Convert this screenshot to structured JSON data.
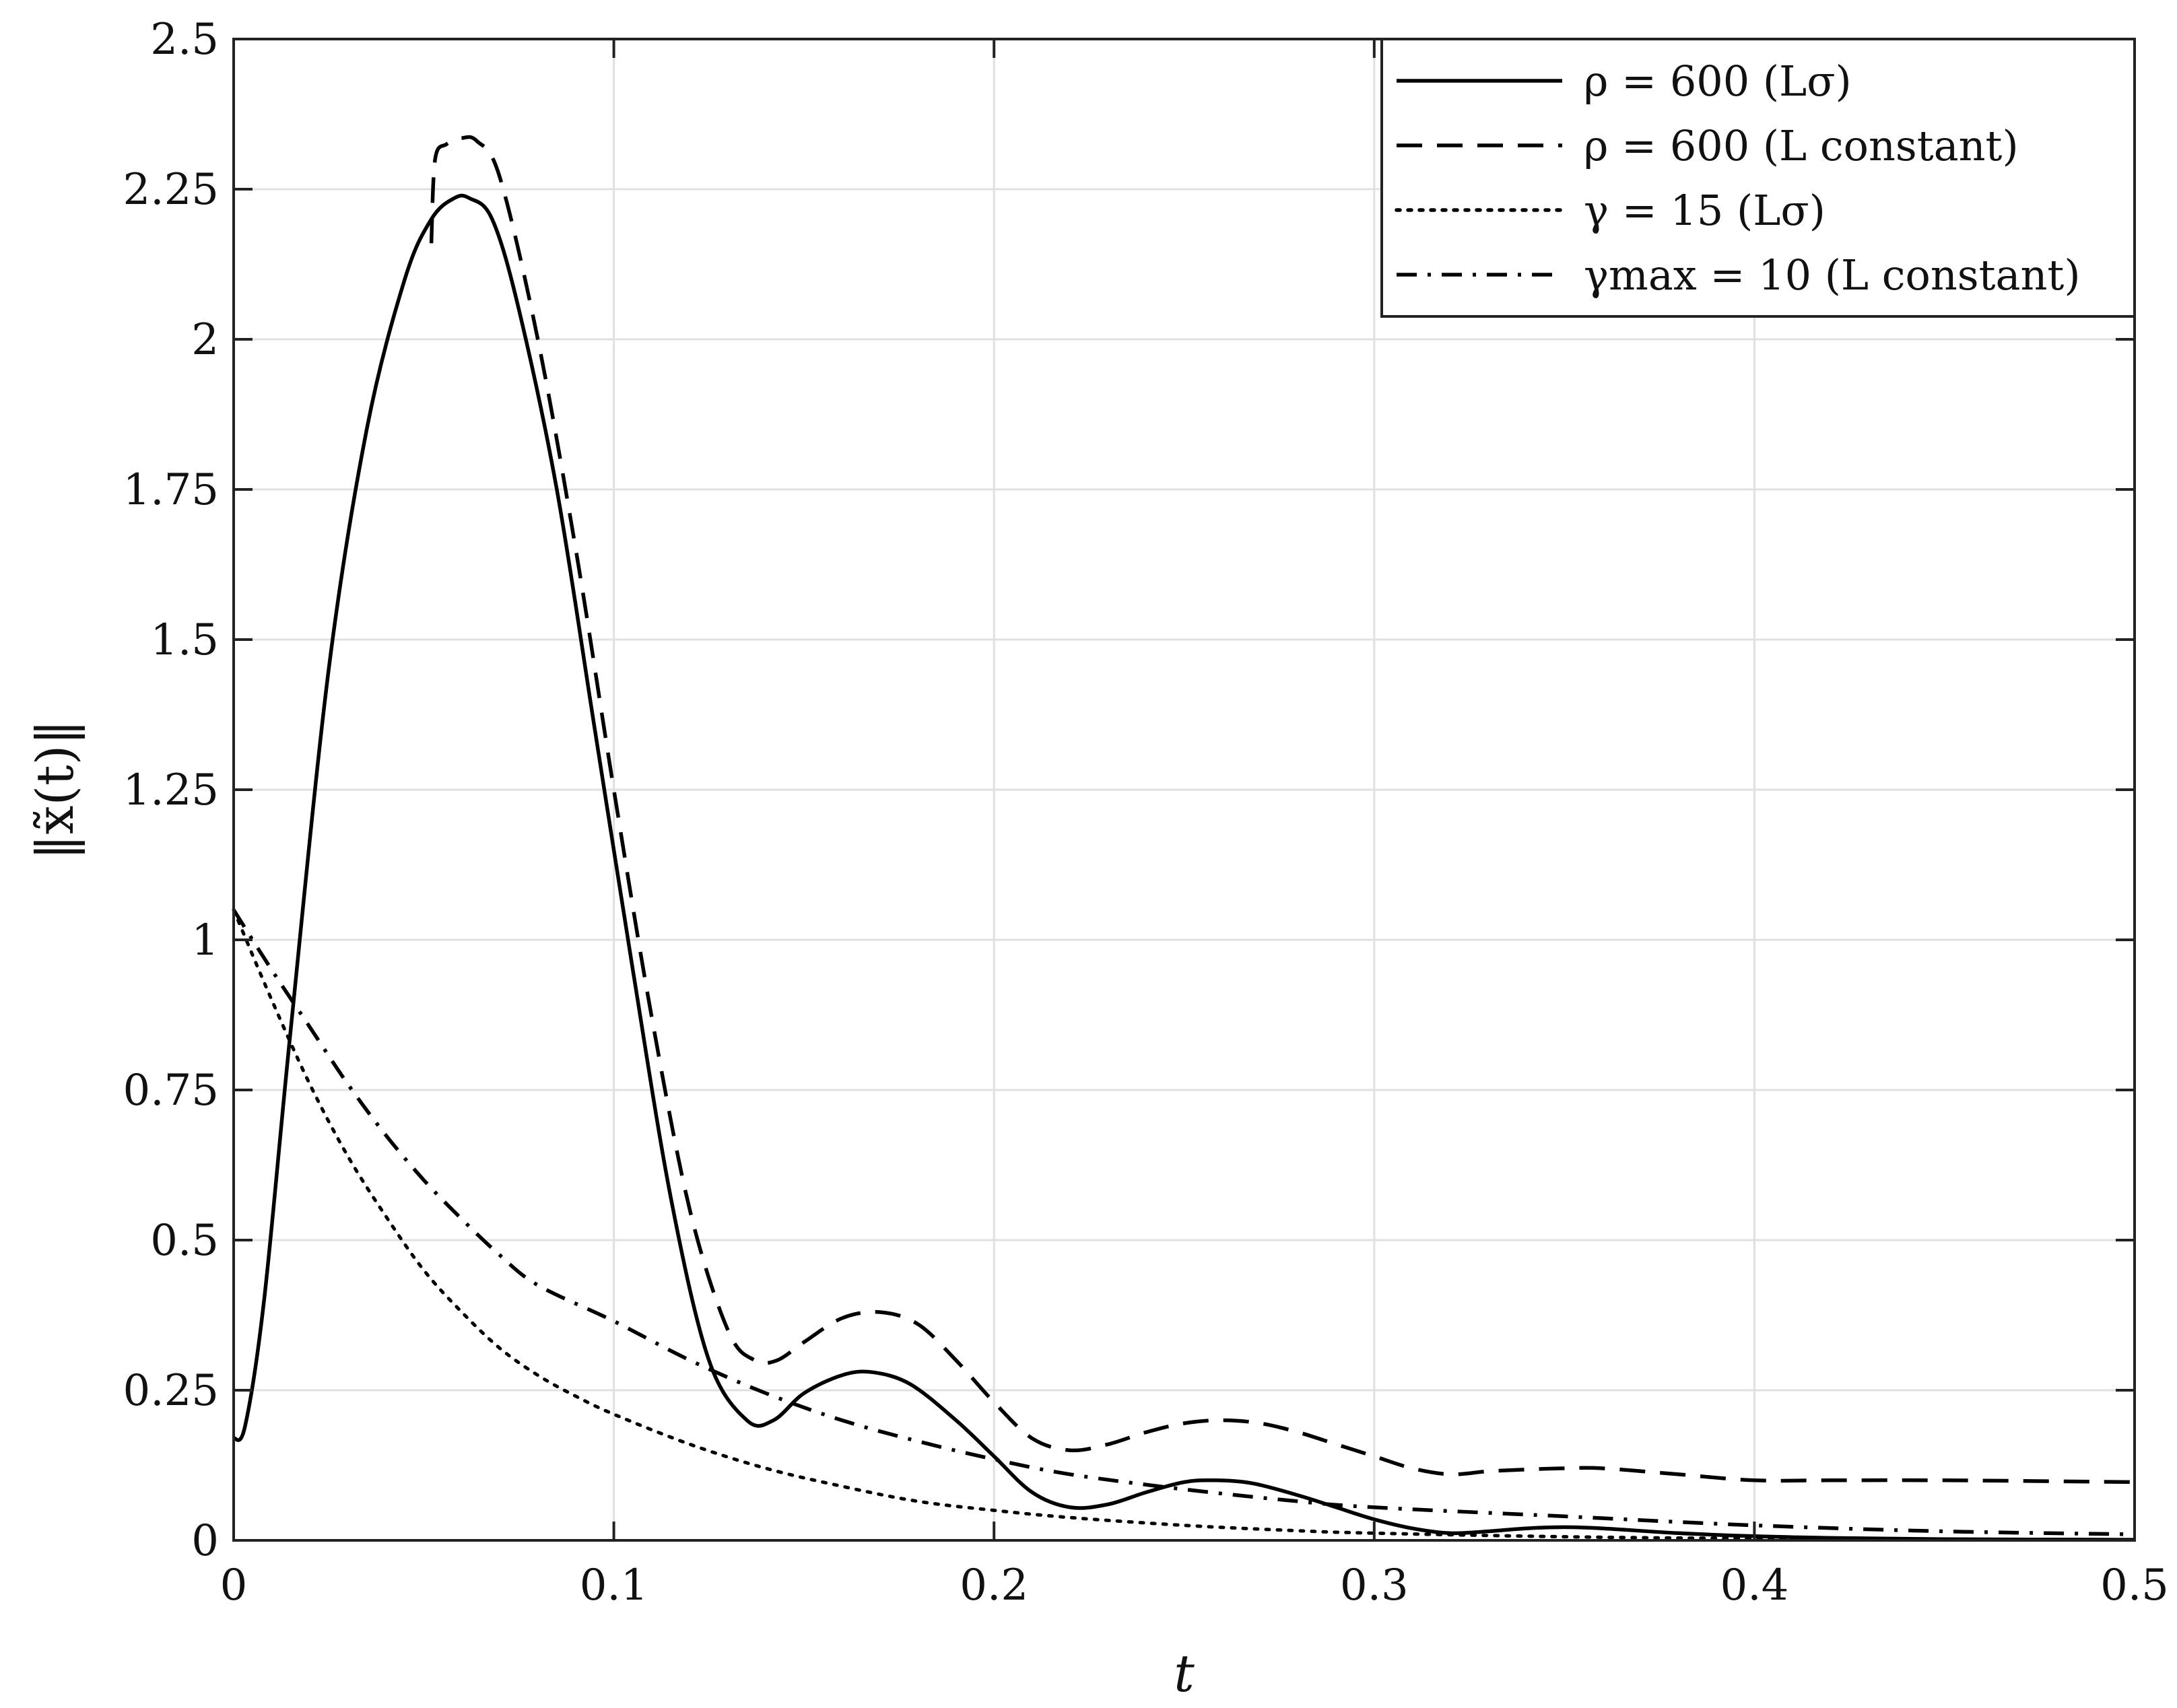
{
  "chart_data": {
    "type": "line",
    "title": "",
    "xlabel": "t",
    "ylabel": "‖x̃(t)‖",
    "xlim": [
      0,
      0.5
    ],
    "ylim": [
      0,
      2.5
    ],
    "xticks": [
      0,
      0.1,
      0.2,
      0.3,
      0.4,
      0.5
    ],
    "xtick_labels": [
      "0",
      "0.1",
      "0.2",
      "0.3",
      "0.4",
      "0.5"
    ],
    "yticks": [
      0,
      0.25,
      0.5,
      0.75,
      1,
      1.25,
      1.5,
      1.75,
      2,
      2.25,
      2.5
    ],
    "ytick_labels": [
      "0",
      "0.25",
      "0.5",
      "0.75",
      "1",
      "1.25",
      "1.5",
      "1.75",
      "2",
      "2.25",
      "2.5"
    ],
    "grid": true,
    "legend_position": "top-right",
    "series": [
      {
        "name": "ρ = 600 (Lσ)",
        "style": "solid",
        "color": "#000000",
        "x": [
          0,
          0.003,
          0.008,
          0.015,
          0.025,
          0.035,
          0.045,
          0.052,
          0.058,
          0.062,
          0.068,
          0.075,
          0.085,
          0.095,
          0.105,
          0.115,
          0.125,
          0.135,
          0.142,
          0.15,
          0.16,
          0.168,
          0.178,
          0.19,
          0.2,
          0.21,
          0.22,
          0.23,
          0.24,
          0.25,
          0.258,
          0.268,
          0.28,
          0.29,
          0.3,
          0.31,
          0.32,
          0.33,
          0.34,
          0.35,
          0.36,
          0.38,
          0.4,
          0.42,
          0.45,
          0.5
        ],
        "y": [
          0.17,
          0.19,
          0.4,
          0.85,
          1.45,
          1.85,
          2.1,
          2.2,
          2.235,
          2.235,
          2.2,
          2.05,
          1.75,
          1.35,
          0.95,
          0.57,
          0.3,
          0.2,
          0.2,
          0.245,
          0.275,
          0.28,
          0.26,
          0.2,
          0.14,
          0.08,
          0.055,
          0.06,
          0.08,
          0.097,
          0.1,
          0.095,
          0.075,
          0.055,
          0.035,
          0.02,
          0.012,
          0.015,
          0.02,
          0.022,
          0.02,
          0.012,
          0.007,
          0.004,
          0.002,
          0.001
        ]
      },
      {
        "name": "ρ = 600 (L constant)",
        "style": "dashed",
        "color": "#000000",
        "x": [
          0.052,
          0.053,
          0.056,
          0.06,
          0.064,
          0.07,
          0.08,
          0.09,
          0.1,
          0.11,
          0.12,
          0.13,
          0.137,
          0.143,
          0.15,
          0.16,
          0.17,
          0.18,
          0.19,
          0.2,
          0.21,
          0.22,
          0.23,
          0.24,
          0.25,
          0.26,
          0.27,
          0.28,
          0.29,
          0.3,
          0.31,
          0.32,
          0.33,
          0.34,
          0.35,
          0.36,
          0.38,
          0.4,
          0.42,
          0.45,
          0.5
        ],
        "y": [
          2.16,
          2.3,
          2.325,
          2.335,
          2.33,
          2.27,
          2.0,
          1.65,
          1.25,
          0.87,
          0.55,
          0.35,
          0.3,
          0.3,
          0.33,
          0.37,
          0.38,
          0.36,
          0.3,
          0.23,
          0.17,
          0.15,
          0.16,
          0.18,
          0.195,
          0.2,
          0.195,
          0.18,
          0.16,
          0.14,
          0.12,
          0.11,
          0.115,
          0.118,
          0.12,
          0.12,
          0.11,
          0.1,
          0.1,
          0.1,
          0.097
        ]
      },
      {
        "name": "γ = 15 (Lσ)",
        "style": "dotted",
        "color": "#000000",
        "x": [
          0,
          0.01,
          0.02,
          0.03,
          0.04,
          0.05,
          0.06,
          0.07,
          0.08,
          0.09,
          0.1,
          0.12,
          0.14,
          0.16,
          0.18,
          0.2,
          0.22,
          0.25,
          0.28,
          0.3,
          0.35,
          0.4,
          0.45,
          0.5
        ],
        "y": [
          1.05,
          0.9,
          0.76,
          0.64,
          0.54,
          0.45,
          0.38,
          0.32,
          0.275,
          0.24,
          0.21,
          0.16,
          0.12,
          0.09,
          0.065,
          0.05,
          0.038,
          0.025,
          0.016,
          0.012,
          0.006,
          0.003,
          0.002,
          0.001
        ]
      },
      {
        "name": "γmax = 10 (L constant)",
        "style": "dashdot",
        "color": "#000000",
        "x": [
          0,
          0.01,
          0.02,
          0.03,
          0.04,
          0.05,
          0.06,
          0.07,
          0.08,
          0.1,
          0.12,
          0.14,
          0.16,
          0.18,
          0.2,
          0.22,
          0.25,
          0.28,
          0.3,
          0.35,
          0.4,
          0.45,
          0.5
        ],
        "y": [
          1.05,
          0.95,
          0.855,
          0.76,
          0.675,
          0.6,
          0.535,
          0.475,
          0.425,
          0.365,
          0.3,
          0.245,
          0.2,
          0.165,
          0.135,
          0.11,
          0.085,
          0.065,
          0.055,
          0.04,
          0.025,
          0.015,
          0.01
        ]
      }
    ]
  }
}
